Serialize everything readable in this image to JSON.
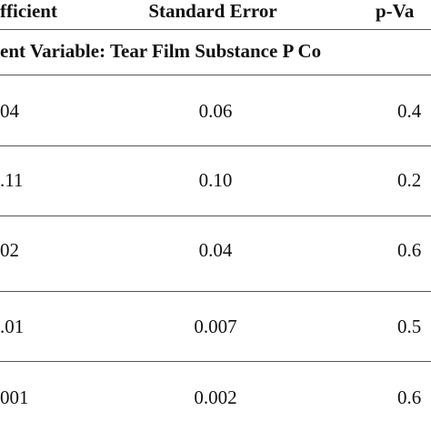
{
  "table": {
    "header": [
      "fficient",
      "Standard Error",
      "p-Va"
    ],
    "section": "ent Variable: Tear Film Substance P Co",
    "rows": [
      [
        "04",
        "0.06",
        "0.4"
      ],
      [
        ".11",
        "0.10",
        "0.2"
      ],
      [
        "02",
        "0.04",
        "0.6"
      ],
      [
        ".01",
        "0.007",
        "0.5"
      ],
      [
        "001",
        "0.002",
        "0.6"
      ]
    ]
  }
}
